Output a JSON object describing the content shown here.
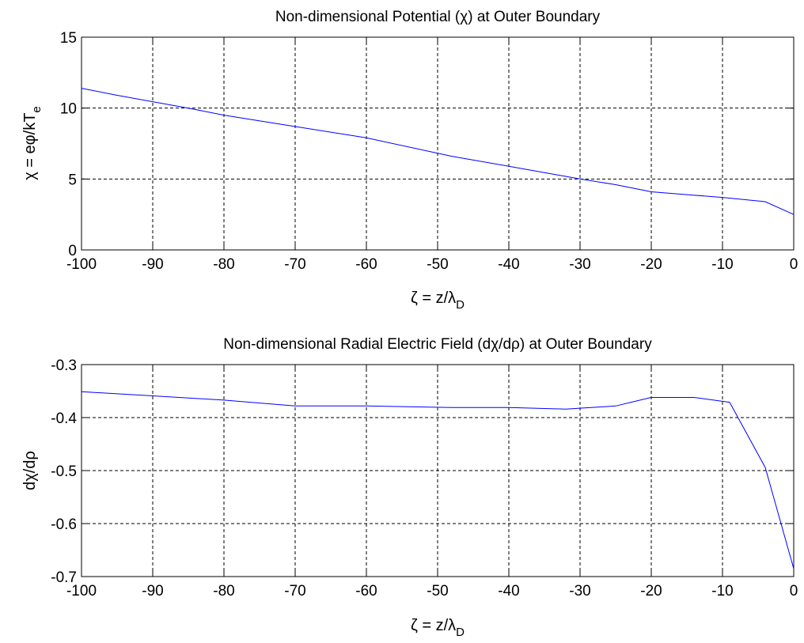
{
  "chart_data": [
    {
      "type": "line",
      "title_parts": [
        "Non-dimensional Potential (",
        "χ",
        ") at Outer Boundary"
      ],
      "xlabel_parts": [
        "ζ = z/λ",
        "D"
      ],
      "ylabel_parts": [
        "χ = eφ/kT",
        "e"
      ],
      "xlim": [
        -100,
        0
      ],
      "ylim": [
        0,
        15
      ],
      "xticks": [
        -100,
        -90,
        -80,
        -70,
        -60,
        -50,
        -40,
        -30,
        -20,
        -10,
        0
      ],
      "yticks": [
        0,
        5,
        10,
        15
      ],
      "grid": true,
      "series": [
        {
          "color": "#0000ff",
          "x": [
            -100,
            -95,
            -85,
            -80,
            -70,
            -60,
            -48,
            -40,
            -30,
            -25,
            -20,
            -15,
            -10,
            -4,
            0
          ],
          "y": [
            11.4,
            10.9,
            10.0,
            9.5,
            8.7,
            7.9,
            6.6,
            5.9,
            5.0,
            4.6,
            4.1,
            3.9,
            3.7,
            3.4,
            2.5
          ]
        }
      ]
    },
    {
      "type": "line",
      "title_parts": [
        "Non-dimensional Radial Electric Field (d",
        "χ",
        "/d",
        "ρ",
        ") at Outer Boundary"
      ],
      "xlabel_parts": [
        "ζ = z/λ",
        "D"
      ],
      "ylabel_parts": [
        "dχ/dρ"
      ],
      "xlim": [
        -100,
        0
      ],
      "ylim": [
        -0.7,
        -0.3
      ],
      "xticks": [
        -100,
        -90,
        -80,
        -70,
        -60,
        -50,
        -40,
        -30,
        -20,
        -10,
        0
      ],
      "yticks": [
        -0.7,
        -0.6,
        -0.5,
        -0.4,
        -0.3
      ],
      "grid": true,
      "series": [
        {
          "color": "#0000ff",
          "x": [
            -100,
            -95,
            -90,
            -80,
            -70,
            -60,
            -48,
            -40,
            -32,
            -25,
            -20,
            -14,
            -9,
            -4,
            0
          ],
          "y": [
            -0.351,
            -0.355,
            -0.359,
            -0.367,
            -0.378,
            -0.378,
            -0.381,
            -0.381,
            -0.384,
            -0.378,
            -0.362,
            -0.362,
            -0.371,
            -0.494,
            -0.685
          ]
        }
      ]
    }
  ]
}
